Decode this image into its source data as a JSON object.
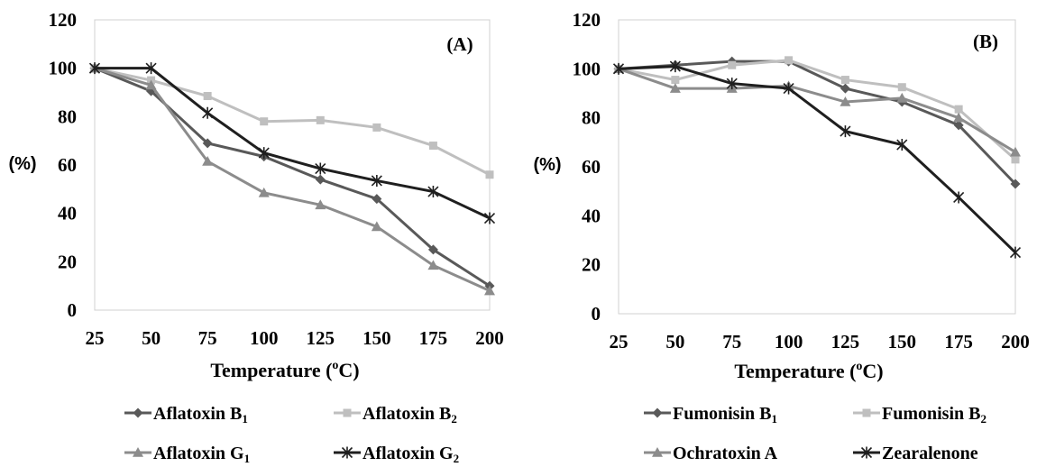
{
  "chart_data": [
    {
      "type": "line",
      "panel_label": "(A)",
      "title": "",
      "xlabel_text": "Temperature (",
      "xlabel_degree": "o",
      "xlabel_unit": "C)",
      "ylabel": "(%)",
      "x": [
        25,
        50,
        75,
        100,
        125,
        150,
        175,
        200
      ],
      "xticks": [
        "25",
        "50",
        "75",
        "100",
        "125",
        "150",
        "175",
        "200"
      ],
      "ylim": [
        0,
        120
      ],
      "yticks": [
        "0",
        "20",
        "40",
        "60",
        "80",
        "100",
        "120"
      ],
      "grid": false,
      "legend_position": "bottom",
      "series": [
        {
          "name": "Aflatoxin B",
          "subscript": "1",
          "color": "#595959",
          "marker": "diamond",
          "values": [
            100,
            90.5,
            69,
            63.5,
            54,
            46,
            25,
            10
          ]
        },
        {
          "name": "Aflatoxin B",
          "subscript": "2",
          "color": "#bfbfbf",
          "marker": "square",
          "values": [
            100,
            95,
            88.5,
            78,
            78.5,
            75.5,
            68,
            56
          ]
        },
        {
          "name": "Aflatoxin G",
          "subscript": "1",
          "color": "#8c8c8c",
          "marker": "triangle",
          "values": [
            100,
            93,
            61.5,
            48.5,
            43.5,
            34.5,
            18.5,
            8
          ]
        },
        {
          "name": "Aflatoxin G",
          "subscript": "2",
          "color": "#1f1f1f",
          "marker": "star",
          "values": [
            100,
            100,
            81.5,
            65,
            58.5,
            53.5,
            49,
            38
          ]
        }
      ]
    },
    {
      "type": "line",
      "panel_label": "(B)",
      "title": "",
      "xlabel_text": "Temperature (",
      "xlabel_degree": "o",
      "xlabel_unit": "C)",
      "ylabel": "(%)",
      "x": [
        25,
        50,
        75,
        100,
        125,
        150,
        175,
        200
      ],
      "xticks": [
        "25",
        "50",
        "75",
        "100",
        "125",
        "150",
        "175",
        "200"
      ],
      "ylim": [
        0,
        120
      ],
      "yticks": [
        "0",
        "20",
        "40",
        "60",
        "80",
        "100",
        "120"
      ],
      "grid": false,
      "legend_position": "bottom",
      "series": [
        {
          "name": "Fumonisin B",
          "subscript": "1",
          "color": "#595959",
          "marker": "diamond",
          "values": [
            100,
            101.5,
            103,
            103,
            92,
            86.5,
            77,
            53
          ]
        },
        {
          "name": "Fumonisin B",
          "subscript": "2",
          "color": "#bfbfbf",
          "marker": "square",
          "values": [
            100,
            95.5,
            101.5,
            103.5,
            95.5,
            92.5,
            83.5,
            63
          ]
        },
        {
          "name": "Ochratoxin A",
          "subscript": "",
          "color": "#8c8c8c",
          "marker": "triangle",
          "values": [
            100,
            92,
            92,
            93,
            86.5,
            88,
            80,
            66
          ]
        },
        {
          "name": "Zearalenone",
          "subscript": "",
          "color": "#1f1f1f",
          "marker": "star",
          "values": [
            100,
            101,
            94,
            92,
            74.5,
            69,
            47.5,
            25
          ]
        }
      ]
    }
  ]
}
